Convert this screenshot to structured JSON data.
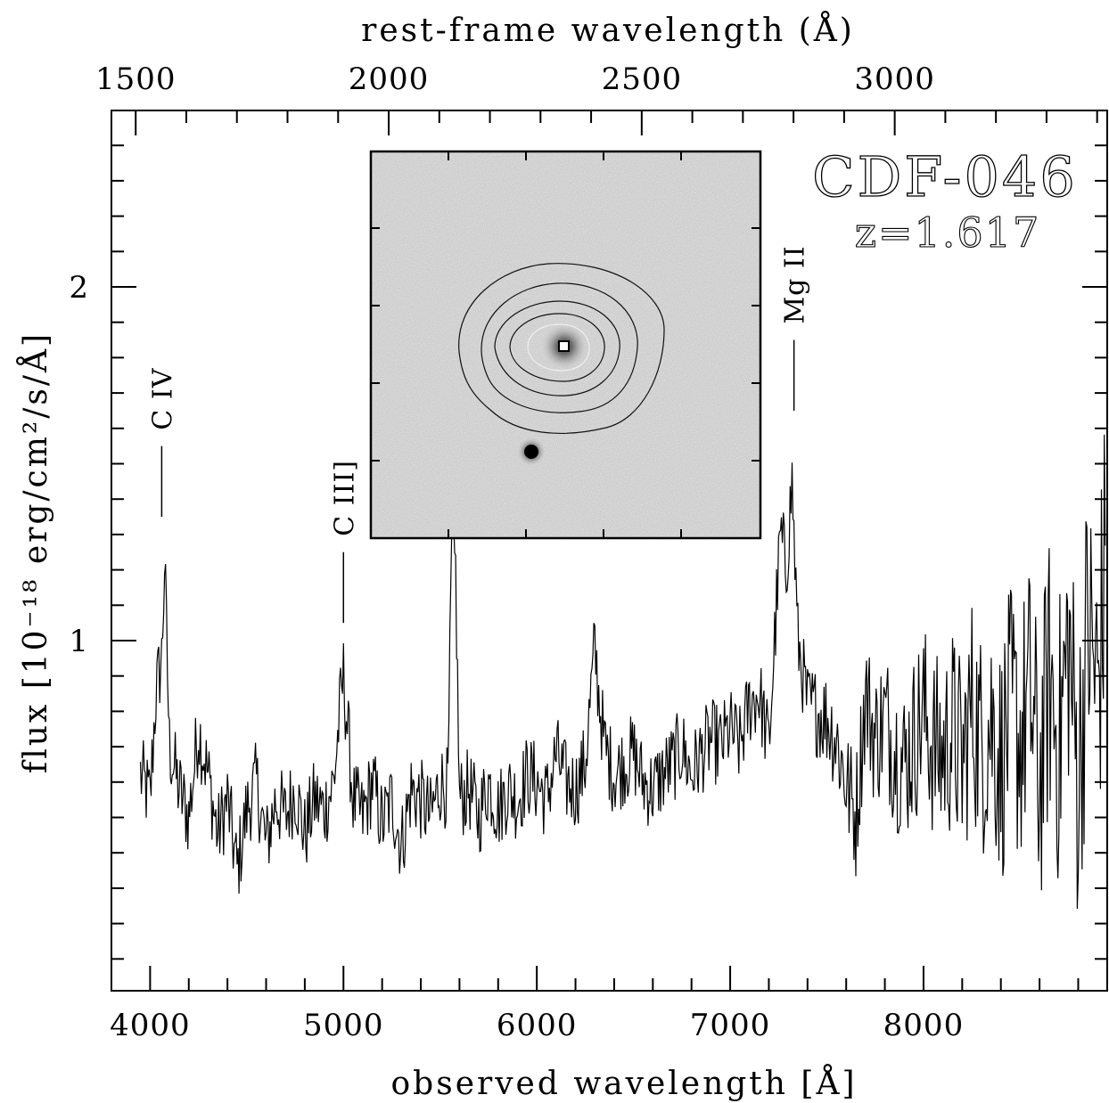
{
  "chart_data": {
    "type": "line",
    "object_name": "CDF-046",
    "redshift_label": "z=1.617",
    "redshift": 1.617,
    "xlabel": "observed wavelength  [Å]",
    "x2label": "rest-frame wavelength (Å)",
    "ylabel": "flux [10⁻¹⁸ erg/cm²/s/Å]",
    "xlim": [
      3800,
      8950
    ],
    "ylim": [
      0.1,
      2.5
    ],
    "x_ticks": [
      4000,
      5000,
      6000,
      7000,
      8000
    ],
    "x2_ticks": [
      1500,
      2000,
      2500,
      3000
    ],
    "y_ticks": [
      1,
      2
    ],
    "grid": false,
    "series": [
      {
        "x": [
          3950,
          4000,
          4030,
          4060,
          4075,
          4100,
          4150,
          4200,
          4250,
          4300,
          4350,
          4400,
          4450,
          4500,
          4550,
          4600,
          4650,
          4700,
          4750,
          4800,
          4850,
          4900,
          4950,
          4985,
          5000,
          5050,
          5100,
          5150,
          5200,
          5250,
          5300,
          5350,
          5400,
          5450,
          5500,
          5540,
          5560,
          5580,
          5600,
          5650,
          5700,
          5750,
          5800,
          5850,
          5900,
          5950,
          6000,
          6050,
          6100,
          6150,
          6200,
          6250,
          6300,
          6320,
          6350,
          6400,
          6450,
          6500,
          6550,
          6600,
          6650,
          6700,
          6750,
          6800,
          6850,
          6900,
          6950,
          7000,
          7050,
          7100,
          7150,
          7200,
          7240,
          7260,
          7290,
          7320,
          7350,
          7400,
          7450,
          7500,
          7550,
          7600,
          7650,
          7700,
          7750,
          7800,
          7850,
          7900,
          7950,
          8000,
          8050,
          8100,
          8150,
          8200,
          8250,
          8300,
          8350,
          8400,
          8450,
          8500,
          8550,
          8600,
          8650,
          8700,
          8750,
          8800,
          8850,
          8900,
          8940
        ],
        "y": [
          0.62,
          0.55,
          0.85,
          0.95,
          1.22,
          0.7,
          0.58,
          0.5,
          0.75,
          0.62,
          0.45,
          0.55,
          0.35,
          0.52,
          0.6,
          0.42,
          0.55,
          0.5,
          0.58,
          0.45,
          0.55,
          0.52,
          0.6,
          0.82,
          0.9,
          0.55,
          0.5,
          0.6,
          0.48,
          0.55,
          0.42,
          0.58,
          0.55,
          0.5,
          0.6,
          0.58,
          1.25,
          1.2,
          0.55,
          0.58,
          0.5,
          0.6,
          0.52,
          0.58,
          0.55,
          0.62,
          0.6,
          0.55,
          0.68,
          0.6,
          0.58,
          0.65,
          0.98,
          0.85,
          0.7,
          0.62,
          0.65,
          0.68,
          0.6,
          0.58,
          0.62,
          0.65,
          0.7,
          0.62,
          0.68,
          0.72,
          0.7,
          0.75,
          0.7,
          0.82,
          0.85,
          0.7,
          1.1,
          1.3,
          1.2,
          1.45,
          1.0,
          0.82,
          0.8,
          0.78,
          0.72,
          0.6,
          0.5,
          0.85,
          0.72,
          0.78,
          0.7,
          0.65,
          0.72,
          0.8,
          0.7,
          0.68,
          0.75,
          0.65,
          0.82,
          0.7,
          0.78,
          0.65,
          0.8,
          0.72,
          0.85,
          0.6,
          0.9,
          0.7,
          1.0,
          0.6,
          1.05,
          0.85,
          1.2
        ]
      }
    ],
    "annotations": [
      {
        "label": "C IV",
        "x": 4060,
        "tick_y": [
          1.35,
          1.55
        ]
      },
      {
        "label": "C III]",
        "x": 5000,
        "tick_y": [
          1.05,
          1.25
        ]
      },
      {
        "label": "Mg II",
        "x": 7330,
        "tick_y": [
          1.65,
          1.85
        ]
      }
    ],
    "inset": {
      "type": "image",
      "description_icon": "galaxy-contour-image"
    }
  }
}
